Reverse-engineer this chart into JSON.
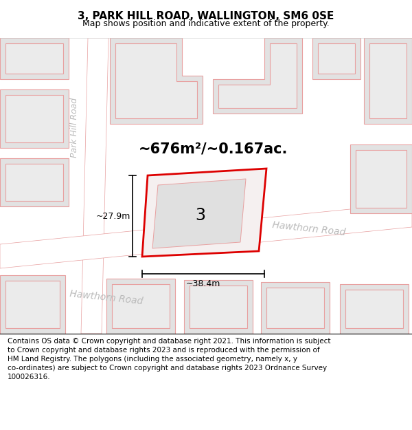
{
  "title": "3, PARK HILL ROAD, WALLINGTON, SM6 0SE",
  "subtitle": "Map shows position and indicative extent of the property.",
  "area_text": "~676m²/~0.167ac.",
  "label_3": "3",
  "dim_width": "~38.4m",
  "dim_height": "~27.9m",
  "road_label_hawthorn1": "Hawthorn Road",
  "road_label_hawthorn2": "Hawthorn Road",
  "road_label_park": "Park Hill Road",
  "footer_line1": "Contains OS data © Crown copyright and database right 2021. This information is subject",
  "footer_line2": "to Crown copyright and database rights 2023 and is reproduced with the permission of",
  "footer_line3": "HM Land Registry. The polygons (including the associated geometry, namely x, y",
  "footer_line4": "co-ordinates) are subject to Crown copyright and database rights 2023 Ordnance Survey",
  "footer_line5": "100026316.",
  "bg_color": "#ffffff",
  "map_bg": "#f2f2f2",
  "block_fill": "#e2e2e2",
  "block_stroke": "#e8a0a0",
  "highlight_stroke": "#dd0000",
  "title_color": "#000000",
  "road_label_color": "#bbbbbb",
  "dim_color": "#000000",
  "area_color": "#000000"
}
